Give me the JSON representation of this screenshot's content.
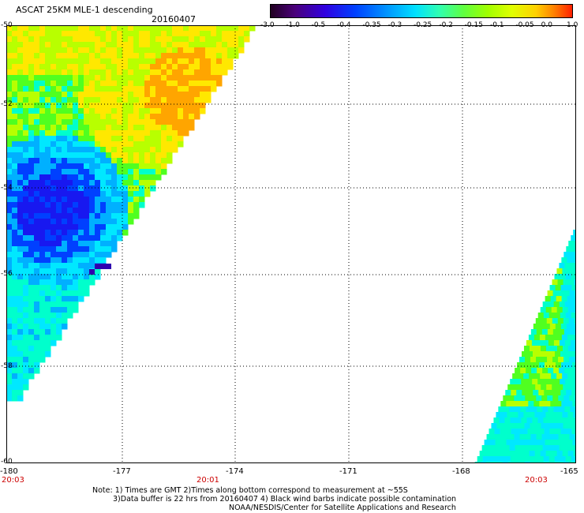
{
  "header": {
    "title": "ASCAT 25KM MLE-1 descending",
    "date": "20160407"
  },
  "colorbar": {
    "ticks": [
      "-3.0",
      "-1.0",
      "-0.5",
      "-0.4",
      "-0.35",
      "-0.3",
      "-0.25",
      "-0.2",
      "-0.15",
      "-0.1",
      "-0.05",
      "0.0",
      "1.0"
    ],
    "colors": [
      "#200020",
      "#4a007a",
      "#3000e0",
      "#0040ff",
      "#0090ff",
      "#00e0ff",
      "#30ffb0",
      "#60ff40",
      "#a0ff00",
      "#e0ff00",
      "#ffd000",
      "#ff8000",
      "#ff2000"
    ]
  },
  "map": {
    "lat_labels": [
      "-50",
      "-52",
      "-54",
      "-56",
      "-58",
      "-60"
    ],
    "lon_labels": [
      "-180",
      "-177",
      "-174",
      "-171",
      "-168",
      "-165"
    ],
    "times": [
      "20:03",
      "20:01",
      "20:03"
    ],
    "swath_colors": {
      "orange": "#ffa500",
      "yellow": "#ffe800",
      "yellowgreen": "#b8ff00",
      "green": "#50ff20",
      "aqua": "#00ffcc",
      "cyan": "#00e8ff",
      "lightblue": "#00b0ff",
      "blue": "#0040ff",
      "deepblue": "#1818f0",
      "purple": "#3000b0"
    }
  },
  "notes": {
    "line1": "Note: 1) Times are GMT 2)Times along bottom correspond to measurement at ~55S",
    "line2": "3)Data buffer is 22 hrs from 20160407 4) Black wind barbs indicate possible contamination",
    "line3": "NOAA/NESDIS/Center for Satellite Applications and Research"
  }
}
